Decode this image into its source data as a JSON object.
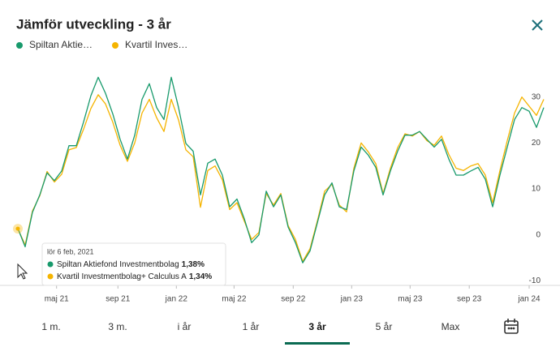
{
  "header": {
    "title": "Jämför utveckling - 3 år"
  },
  "chart_data": {
    "type": "line",
    "series": [
      {
        "name": "Spiltan Aktie…",
        "color": "#189a6c",
        "values": [
          1.38,
          -2.6,
          4.9,
          8.7,
          13.5,
          11.8,
          13.9,
          19.4,
          19.4,
          24.6,
          30.3,
          34.3,
          30.8,
          26.3,
          20.8,
          16.5,
          21.7,
          29.5,
          32.9,
          27.7,
          25.1,
          34.3,
          27.7,
          19.9,
          18.2,
          8.7,
          15.6,
          16.5,
          13.0,
          6.1,
          7.8,
          3.5,
          -1.7,
          0,
          9.5,
          6.1,
          8.7,
          1.7,
          -1.7,
          -6.1,
          -3.5,
          2.6,
          8.7,
          11.3,
          6.1,
          5.5,
          13.9,
          19.1,
          17.3,
          14.7,
          8.7,
          13.9,
          18.2,
          21.7,
          21.7,
          22.5,
          20.8,
          19.1,
          20.8,
          16.5,
          13.0,
          13.0,
          13.9,
          14.7,
          12.1,
          6.1,
          13.0,
          19.1,
          25.1,
          27.7,
          26.9,
          23.4,
          27.7
        ]
      },
      {
        "name": "Kvartil Inves…",
        "color": "#f5b400",
        "values": [
          1.34,
          -2.2,
          5.2,
          8.5,
          13.8,
          11.5,
          13.2,
          18.5,
          19.0,
          23.0,
          27.5,
          30.5,
          28.5,
          24.5,
          19.5,
          16.0,
          20.0,
          26.5,
          29.5,
          25.5,
          22.5,
          29.5,
          25.0,
          18.5,
          17.0,
          6.0,
          14.0,
          15.0,
          12.0,
          5.5,
          7.0,
          3.0,
          -1.0,
          0.5,
          9.0,
          6.5,
          9.0,
          2.0,
          -1.0,
          -5.8,
          -3.0,
          3.0,
          9.5,
          11.0,
          6.5,
          5.0,
          14.5,
          20.0,
          18.0,
          15.5,
          9.0,
          14.5,
          19.0,
          22.0,
          21.5,
          22.5,
          20.5,
          19.5,
          21.5,
          17.5,
          14.5,
          14.0,
          15.0,
          15.5,
          13.0,
          7.0,
          14.0,
          20.5,
          26.5,
          30.0,
          28.0,
          26.0,
          29.5
        ]
      }
    ],
    "xlim": [
      0,
      72
    ],
    "xticks": [
      {
        "value": 5.3,
        "label": "maj 21"
      },
      {
        "value": 13.7,
        "label": "sep 21"
      },
      {
        "value": 21.7,
        "label": "jan 22"
      },
      {
        "value": 29.6,
        "label": "maj 22"
      },
      {
        "value": 37.7,
        "label": "sep 22"
      },
      {
        "value": 45.7,
        "label": "jan 23"
      },
      {
        "value": 53.7,
        "label": "maj 23"
      },
      {
        "value": 61.8,
        "label": "sep 23"
      },
      {
        "value": 70,
        "label": "jan 24"
      }
    ],
    "ylim": [
      -11,
      37
    ],
    "yticks": [
      -10,
      0,
      10,
      20,
      30
    ],
    "grid": false
  },
  "tooltip": {
    "date": "lör 6 feb, 2021",
    "items": [
      {
        "name": "Spiltan Aktiefond Investmentbolag",
        "value": "1,38%"
      },
      {
        "name": "Kvartil Investmentbolag+ Calculus A",
        "value": "1,34%"
      }
    ]
  },
  "tabs": {
    "items": [
      "1 m.",
      "3 m.",
      "i år",
      "1 år",
      "3 år",
      "5 år",
      "Max"
    ],
    "selected": 4
  }
}
